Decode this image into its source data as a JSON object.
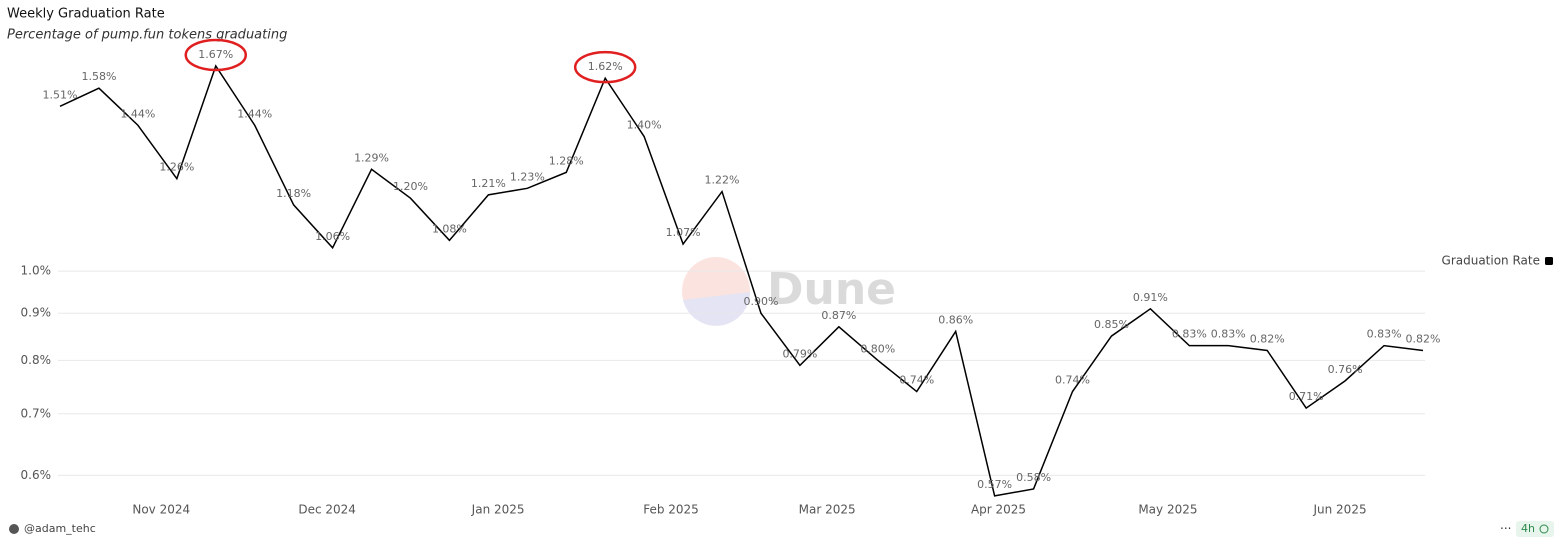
{
  "chart_data": {
    "type": "line",
    "title": "Weekly Graduation Rate",
    "subtitle": "Percentage of pump.fun tokens graduating",
    "watermark": "Dune",
    "author": "@adam_tehc",
    "age": "4h",
    "series": [
      {
        "name": "Graduation Rate",
        "color": "#000000",
        "values": [
          1.51,
          1.58,
          1.44,
          1.26,
          1.67,
          1.44,
          1.18,
          1.06,
          1.29,
          1.2,
          1.08,
          1.21,
          1.23,
          1.28,
          1.62,
          1.4,
          1.07,
          1.22,
          0.9,
          0.79,
          0.87,
          0.8,
          0.74,
          0.86,
          0.57,
          0.58,
          0.74,
          0.85,
          0.91,
          0.83,
          0.83,
          0.82,
          0.71,
          0.76,
          0.83,
          0.82
        ],
        "value_labels": [
          "1.51%",
          "1.58%",
          "1.44%",
          "1.26%",
          "1.67%",
          "1.44%",
          "1.18%",
          "1.06%",
          "1.29%",
          "1.20%",
          "1.08%",
          "1.21%",
          "1.23%",
          "1.28%",
          "1.62%",
          "1.40%",
          "1.07%",
          "1.22%",
          "0.90%",
          "0.79%",
          "0.87%",
          "0.80%",
          "0.74%",
          "0.86%",
          "0.57%",
          "0.58%",
          "0.74%",
          "0.85%",
          "0.91%",
          "0.83%",
          "0.83%",
          "0.82%",
          "0.71%",
          "0.76%",
          "0.83%",
          "0.82%"
        ]
      }
    ],
    "xlim": [
      0,
      35
    ],
    "xticks": [
      {
        "value": 2.6,
        "label": "Nov 2024"
      },
      {
        "value": 6.86,
        "label": "Dec 2024"
      },
      {
        "value": 11.25,
        "label": "Jan 2025"
      },
      {
        "value": 15.69,
        "label": "Feb 2025"
      },
      {
        "value": 19.7,
        "label": "Mar 2025"
      },
      {
        "value": 24.1,
        "label": "Apr 2025"
      },
      {
        "value": 28.45,
        "label": "May 2025"
      },
      {
        "value": 32.87,
        "label": "Jun 2025"
      }
    ],
    "ylim": [
      0.56,
      1.76
    ],
    "yticks": [
      {
        "value": 0.6,
        "label": "0.6%"
      },
      {
        "value": 0.7,
        "label": "0.7%"
      },
      {
        "value": 0.8,
        "label": "0.8%"
      },
      {
        "value": 0.9,
        "label": "0.9%"
      },
      {
        "value": 1.0,
        "label": "1.0%"
      }
    ],
    "log_scale": true,
    "grid": true,
    "legend": "right"
  }
}
